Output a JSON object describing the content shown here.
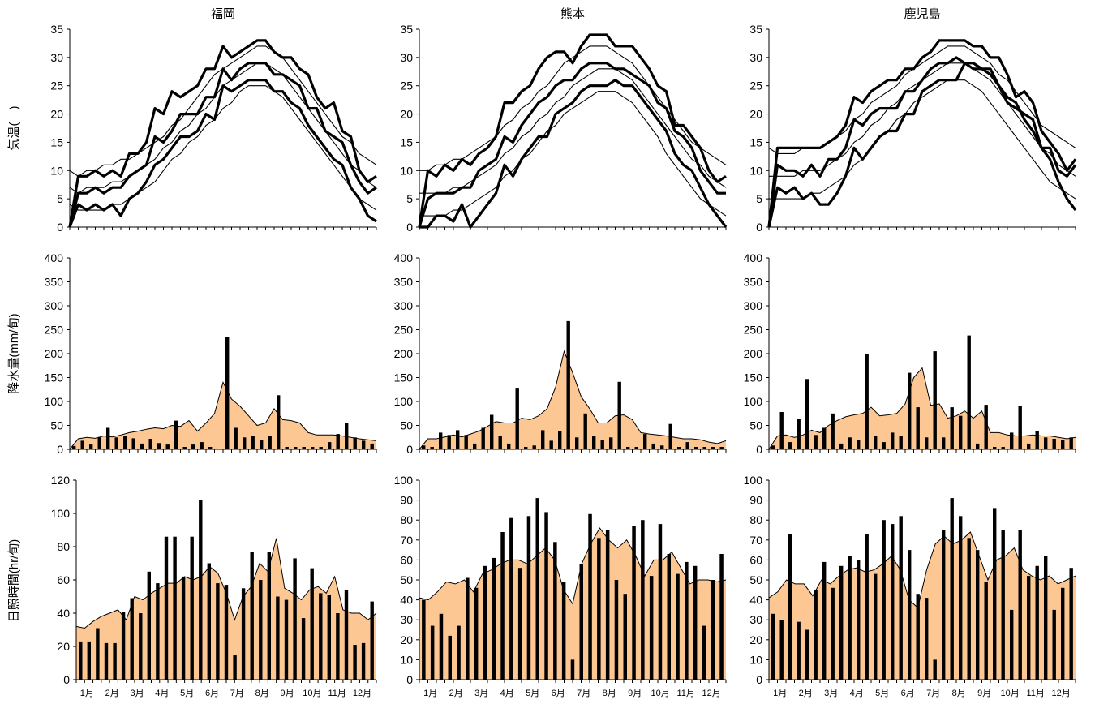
{
  "months": [
    "1月",
    "2月",
    "3月",
    "4月",
    "5月",
    "6月",
    "7月",
    "8月",
    "9月",
    "10月",
    "11月",
    "12月"
  ],
  "temp_ylabel": "気温(　)",
  "precip_ylabel": "降水量(mm/旬)",
  "sun_ylabel": "日照時間(hr/旬)",
  "colors": {
    "fill": "#fdc794",
    "line": "#000000",
    "bar": "#000000"
  },
  "chart_data": [
    {
      "type": "line",
      "panel": "temperature",
      "station": "福岡",
      "title": "福岡",
      "ylim": [
        0,
        35
      ],
      "yticks": [
        0,
        5,
        10,
        15,
        20,
        25,
        30,
        35
      ],
      "series": [
        {
          "values": [
            0,
            9,
            9,
            10,
            9,
            10,
            9,
            13,
            13,
            15,
            21,
            20,
            24,
            23,
            24,
            25,
            28,
            28,
            32,
            30,
            31,
            32,
            33,
            33,
            31,
            30,
            30,
            28,
            27,
            23,
            21,
            22,
            17,
            16,
            10,
            8,
            9
          ]
        },
        {
          "values": [
            0,
            6,
            6,
            7,
            6,
            7,
            7,
            9,
            10,
            11,
            16,
            15,
            17,
            20,
            20,
            20,
            23,
            23,
            28,
            26,
            28,
            29,
            29,
            29,
            27,
            27,
            26,
            25,
            21,
            21,
            17,
            16,
            15,
            11,
            8,
            6,
            7
          ]
        },
        {
          "values": [
            0,
            4,
            3,
            4,
            3,
            4,
            2,
            5,
            6,
            8,
            11,
            12,
            14,
            16,
            16,
            17,
            20,
            19,
            25,
            24,
            25,
            26,
            26,
            26,
            24,
            24,
            22,
            21,
            18,
            16,
            14,
            12,
            11,
            7,
            5,
            2,
            1
          ]
        },
        {
          "values": [
            10,
            9,
            10,
            10,
            11,
            11,
            12,
            12,
            13,
            14,
            15,
            16,
            18,
            19,
            21,
            23,
            25,
            27,
            28,
            29,
            30,
            31,
            32,
            32,
            31,
            30,
            28,
            26,
            24,
            22,
            20,
            18,
            16,
            15,
            13,
            12,
            11
          ]
        },
        {
          "values": [
            7,
            6,
            7,
            7,
            7,
            8,
            8,
            9,
            10,
            11,
            12,
            14,
            15,
            17,
            18,
            20,
            21,
            23,
            25,
            26,
            27,
            28,
            29,
            29,
            28,
            27,
            25,
            23,
            21,
            19,
            17,
            15,
            13,
            11,
            10,
            8,
            7
          ]
        },
        {
          "values": [
            4,
            3,
            3,
            3,
            3,
            4,
            4,
            5,
            6,
            7,
            8,
            10,
            12,
            13,
            15,
            16,
            18,
            19,
            21,
            22,
            24,
            25,
            25,
            25,
            24,
            23,
            21,
            19,
            17,
            15,
            13,
            11,
            9,
            7,
            5,
            4,
            3
          ]
        }
      ]
    },
    {
      "type": "line",
      "panel": "temperature",
      "station": "熊本",
      "title": "熊本",
      "ylim": [
        0,
        35
      ],
      "yticks": [
        0,
        5,
        10,
        15,
        20,
        25,
        30,
        35
      ],
      "series": [
        {
          "values": [
            0,
            10,
            9,
            11,
            10,
            12,
            11,
            13,
            14,
            16,
            22,
            22,
            24,
            25,
            28,
            30,
            31,
            31,
            29,
            32,
            34,
            34,
            34,
            32,
            32,
            32,
            30,
            28,
            25,
            24,
            18,
            18,
            16,
            14,
            10,
            8,
            9
          ]
        },
        {
          "values": [
            0,
            5,
            6,
            6,
            6,
            7,
            7,
            10,
            11,
            12,
            16,
            15,
            18,
            20,
            22,
            23,
            25,
            26,
            26,
            28,
            29,
            29,
            29,
            28,
            28,
            27,
            26,
            25,
            22,
            21,
            17,
            16,
            14,
            10,
            8,
            6,
            6
          ]
        },
        {
          "values": [
            -1,
            0,
            2,
            2,
            1,
            4,
            0,
            2,
            4,
            6,
            11,
            9,
            12,
            14,
            16,
            16,
            20,
            21,
            22,
            24,
            25,
            25,
            25,
            26,
            25,
            25,
            23,
            21,
            19,
            17,
            13,
            11,
            10,
            7,
            4,
            2,
            0
          ]
        },
        {
          "values": [
            10,
            10,
            11,
            11,
            12,
            12,
            13,
            14,
            15,
            16,
            18,
            19,
            21,
            22,
            24,
            25,
            27,
            29,
            30,
            31,
            32,
            32,
            32,
            31,
            30,
            29,
            27,
            25,
            23,
            21,
            19,
            17,
            15,
            14,
            13,
            12,
            11
          ]
        },
        {
          "values": [
            6,
            6,
            6,
            6,
            7,
            7,
            8,
            9,
            10,
            11,
            13,
            14,
            16,
            17,
            19,
            20,
            22,
            23,
            25,
            26,
            27,
            28,
            28,
            28,
            27,
            26,
            24,
            22,
            20,
            18,
            16,
            14,
            12,
            11,
            9,
            8,
            7
          ]
        },
        {
          "values": [
            2,
            2,
            2,
            2,
            3,
            3,
            4,
            5,
            6,
            7,
            9,
            10,
            12,
            13,
            15,
            17,
            18,
            20,
            21,
            22,
            23,
            24,
            24,
            24,
            23,
            22,
            20,
            18,
            16,
            13,
            11,
            9,
            7,
            5,
            4,
            3,
            2
          ]
        }
      ]
    },
    {
      "type": "line",
      "panel": "temperature",
      "station": "鹿児島",
      "title": "鹿児島",
      "ylim": [
        0,
        35
      ],
      "yticks": [
        0,
        5,
        10,
        15,
        20,
        25,
        30,
        35
      ],
      "series": [
        {
          "values": [
            0,
            14,
            14,
            14,
            14,
            14,
            14,
            15,
            16,
            18,
            23,
            22,
            24,
            25,
            26,
            26,
            28,
            28,
            30,
            31,
            33,
            33,
            33,
            33,
            32,
            32,
            30,
            30,
            27,
            23,
            24,
            22,
            17,
            15,
            13,
            10,
            12
          ]
        },
        {
          "values": [
            0,
            11,
            10,
            10,
            9,
            11,
            9,
            12,
            12,
            14,
            19,
            18,
            20,
            21,
            21,
            21,
            24,
            24,
            26,
            28,
            29,
            29,
            30,
            29,
            29,
            28,
            28,
            25,
            22,
            21,
            20,
            19,
            14,
            14,
            10,
            9,
            11
          ]
        },
        {
          "values": [
            0,
            7,
            6,
            7,
            5,
            6,
            4,
            4,
            6,
            9,
            14,
            12,
            14,
            16,
            17,
            17,
            20,
            20,
            24,
            25,
            26,
            26,
            26,
            29,
            28,
            28,
            27,
            25,
            23,
            22,
            19,
            17,
            14,
            12,
            8,
            5,
            3
          ]
        },
        {
          "values": [
            14,
            13,
            13,
            13,
            14,
            14,
            14,
            15,
            16,
            17,
            19,
            20,
            22,
            23,
            24,
            25,
            27,
            28,
            29,
            30,
            31,
            32,
            32,
            32,
            31,
            30,
            29,
            27,
            26,
            24,
            22,
            20,
            18,
            17,
            16,
            15,
            14
          ]
        },
        {
          "values": [
            9,
            9,
            9,
            9,
            10,
            10,
            10,
            11,
            12,
            13,
            15,
            16,
            18,
            19,
            21,
            22,
            24,
            25,
            26,
            27,
            28,
            29,
            29,
            29,
            28,
            27,
            26,
            24,
            22,
            20,
            18,
            16,
            14,
            13,
            11,
            10,
            9
          ]
        },
        {
          "values": [
            5,
            5,
            5,
            5,
            5,
            6,
            6,
            7,
            8,
            9,
            11,
            12,
            14,
            16,
            17,
            19,
            20,
            22,
            23,
            24,
            25,
            26,
            26,
            26,
            25,
            24,
            22,
            20,
            18,
            16,
            14,
            12,
            10,
            8,
            7,
            6,
            5
          ]
        }
      ]
    },
    {
      "type": "bar",
      "panel": "precipitation",
      "station": "福岡",
      "ylim": [
        0,
        400
      ],
      "yticks": [
        0,
        50,
        100,
        150,
        200,
        250,
        300,
        350,
        400
      ],
      "bars": [
        7,
        18,
        10,
        25,
        45,
        25,
        28,
        23,
        12,
        22,
        13,
        10,
        60,
        5,
        10,
        15,
        5,
        0,
        235,
        45,
        25,
        28,
        20,
        28,
        113,
        5,
        5,
        5,
        5,
        5,
        15,
        32,
        55,
        25,
        18,
        12
      ],
      "normal": [
        0,
        22,
        25,
        23,
        28,
        26,
        30,
        35,
        38,
        42,
        45,
        43,
        50,
        48,
        60,
        38,
        55,
        75,
        140,
        105,
        90,
        70,
        50,
        55,
        85,
        62,
        60,
        55,
        35,
        30,
        30,
        30,
        28,
        25,
        22,
        20,
        18
      ]
    },
    {
      "type": "bar",
      "panel": "precipitation",
      "station": "熊本",
      "ylim": [
        0,
        400
      ],
      "yticks": [
        0,
        50,
        100,
        150,
        200,
        250,
        300,
        350,
        400
      ],
      "bars": [
        8,
        5,
        35,
        30,
        40,
        30,
        12,
        45,
        72,
        28,
        12,
        127,
        5,
        8,
        40,
        18,
        38,
        268,
        25,
        75,
        28,
        20,
        25,
        141,
        5,
        5,
        32,
        12,
        8,
        53,
        5,
        15,
        5,
        5,
        5,
        5
      ],
      "normal": [
        0,
        22,
        22,
        26,
        30,
        26,
        32,
        38,
        48,
        58,
        55,
        55,
        65,
        62,
        70,
        85,
        130,
        205,
        160,
        110,
        85,
        55,
        55,
        70,
        72,
        62,
        35,
        32,
        30,
        28,
        25,
        22,
        22,
        20,
        15,
        12,
        18
      ]
    },
    {
      "type": "bar",
      "panel": "precipitation",
      "station": "鹿児島",
      "ylim": [
        0,
        400
      ],
      "yticks": [
        0,
        50,
        100,
        150,
        200,
        250,
        300,
        350,
        400
      ],
      "bars": [
        8,
        78,
        15,
        63,
        147,
        30,
        45,
        75,
        12,
        25,
        20,
        200,
        28,
        15,
        35,
        28,
        160,
        88,
        25,
        205,
        25,
        88,
        70,
        238,
        12,
        93,
        5,
        5,
        35,
        90,
        12,
        38,
        25,
        22,
        20,
        25
      ],
      "normal": [
        0,
        28,
        30,
        25,
        30,
        40,
        35,
        50,
        60,
        68,
        72,
        75,
        88,
        70,
        72,
        75,
        95,
        150,
        170,
        92,
        95,
        65,
        70,
        80,
        65,
        80,
        35,
        35,
        30,
        28,
        28,
        30,
        28,
        28,
        25,
        22,
        25
      ]
    },
    {
      "type": "bar",
      "panel": "sunshine",
      "station": "福岡",
      "ylim": [
        0,
        120
      ],
      "yticks": [
        0,
        20,
        40,
        60,
        80,
        100,
        120
      ],
      "bars": [
        23,
        23,
        31,
        22,
        22,
        41,
        49,
        40,
        65,
        58,
        86,
        86,
        62,
        86,
        108,
        70,
        58,
        57,
        15,
        55,
        77,
        60,
        77,
        50,
        48,
        73,
        37,
        67,
        52,
        51,
        40,
        54,
        21,
        22,
        47
      ],
      "normal": [
        32,
        31,
        35,
        38,
        40,
        42,
        36,
        50,
        48,
        52,
        55,
        58,
        58,
        62,
        60,
        62,
        68,
        64,
        52,
        36,
        50,
        56,
        70,
        65,
        85,
        55,
        52,
        48,
        54,
        56,
        52,
        62,
        42,
        40,
        40,
        36,
        40
      ]
    },
    {
      "type": "bar",
      "panel": "sunshine",
      "station": "熊本",
      "ylim": [
        0,
        100
      ],
      "yticks": [
        0,
        10,
        20,
        30,
        40,
        50,
        60,
        70,
        80,
        90,
        100
      ],
      "bars": [
        40,
        27,
        33,
        22,
        27,
        51,
        46,
        57,
        61,
        74,
        81,
        56,
        82,
        91,
        84,
        69,
        49,
        10,
        58,
        83,
        71,
        75,
        50,
        43,
        77,
        80,
        52,
        78,
        63,
        53,
        59,
        57,
        27,
        50,
        63
      ],
      "normal": [
        41,
        40,
        44,
        49,
        48,
        50,
        44,
        53,
        55,
        58,
        60,
        60,
        58,
        62,
        66,
        60,
        45,
        38,
        58,
        68,
        76,
        70,
        66,
        70,
        62,
        52,
        60,
        60,
        64,
        56,
        48,
        50,
        50,
        49,
        50
      ]
    },
    {
      "type": "bar",
      "panel": "sunshine",
      "station": "鹿児島",
      "ylim": [
        0,
        100
      ],
      "yticks": [
        0,
        10,
        20,
        30,
        40,
        50,
        60,
        70,
        80,
        90,
        100
      ],
      "bars": [
        33,
        30,
        73,
        29,
        25,
        45,
        59,
        46,
        57,
        62,
        60,
        73,
        53,
        80,
        78,
        82,
        65,
        43,
        41,
        10,
        75,
        91,
        82,
        71,
        65,
        49,
        86,
        75,
        35,
        75,
        52,
        57,
        62,
        35,
        46,
        56
      ],
      "normal": [
        41,
        44,
        50,
        48,
        48,
        42,
        50,
        48,
        52,
        55,
        56,
        54,
        55,
        58,
        62,
        55,
        40,
        36,
        55,
        68,
        72,
        68,
        70,
        74,
        62,
        50,
        60,
        62,
        66,
        55,
        52,
        50,
        52,
        48,
        50,
        52
      ]
    }
  ]
}
